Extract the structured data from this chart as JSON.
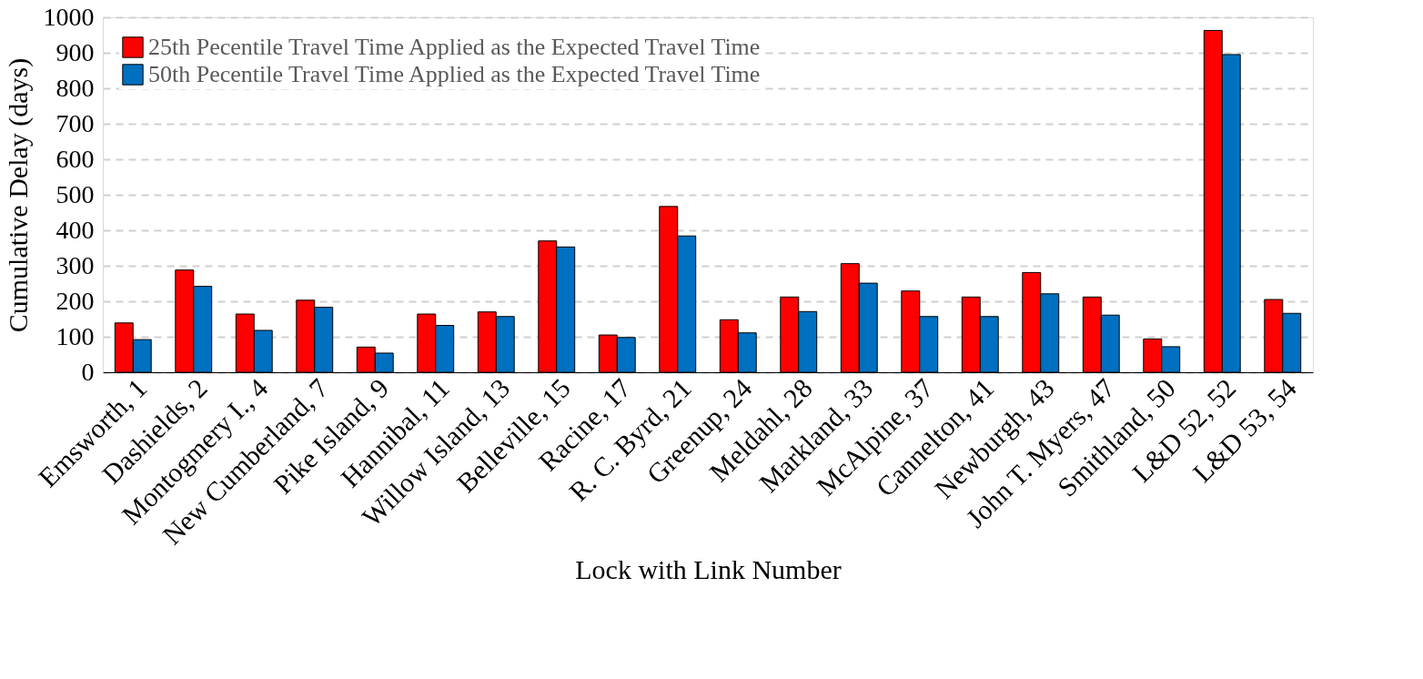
{
  "chart_data": {
    "type": "bar",
    "xlabel": "Lock with Link Number",
    "ylabel": "Cumulative Delay (days)",
    "categories": [
      "Emsworth, 1",
      "Dashields, 2",
      "Montogmery I., 4",
      "New Cumberland, 7",
      "Pike Island, 9",
      "Hannibal, 11",
      "Willow Island, 13",
      "Belleville, 15",
      "Racine, 17",
      "R. C. Byrd, 21",
      "Greenup, 24",
      "Meldahl, 28",
      "Markland, 33",
      "McAlpine, 37",
      "Cannelton, 41",
      "Newburgh, 43",
      "John T. Myers, 47",
      "Smithland, 50",
      "L&D 52, 52",
      "L&D 53, 54"
    ],
    "series": [
      {
        "name": "25th Pecentile Travel Time Applied as the Expected Travel Time",
        "color": "#ff0000",
        "values": [
          139,
          288,
          164,
          203,
          71,
          164,
          170,
          370,
          105,
          467,
          148,
          212,
          306,
          229,
          212,
          281,
          212,
          94,
          963,
          205
        ]
      },
      {
        "name": "50th Pecentile Travel Time Applied as the Expected Travel Time",
        "color": "#0070c0",
        "values": [
          92,
          242,
          118,
          183,
          54,
          132,
          157,
          353,
          98,
          384,
          111,
          171,
          251,
          157,
          157,
          221,
          161,
          72,
          895,
          166
        ]
      }
    ],
    "ylim": [
      0,
      1000
    ],
    "yticks": [
      0,
      100,
      200,
      300,
      400,
      500,
      600,
      700,
      800,
      900,
      1000
    ],
    "grid": "y",
    "legend": "top left"
  }
}
